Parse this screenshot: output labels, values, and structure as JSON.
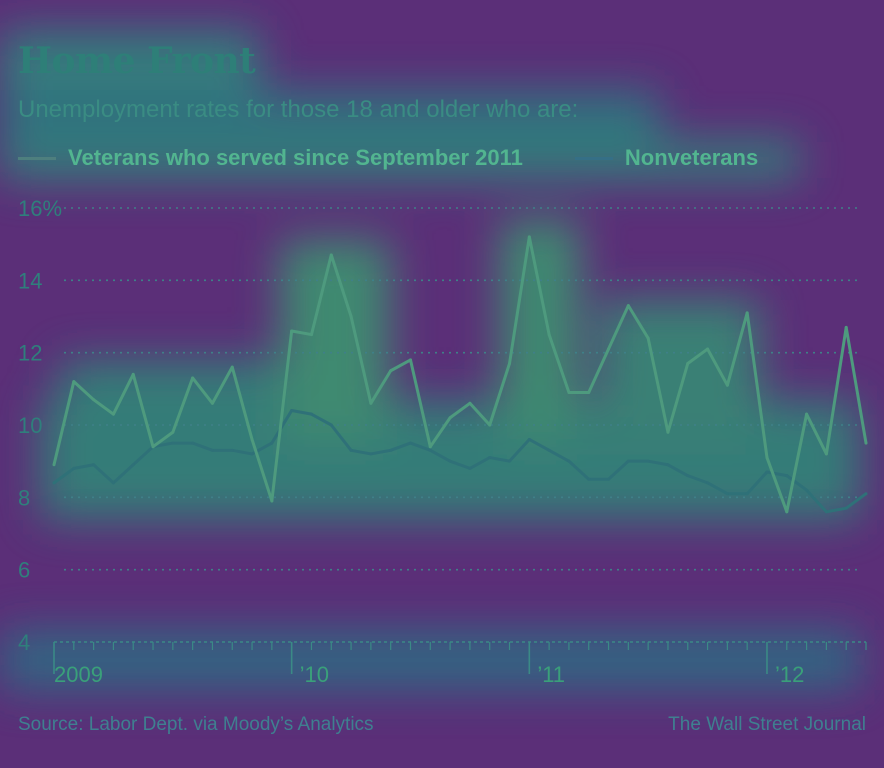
{
  "header": {
    "title": "Home Front",
    "subtitle": "Unemployment rates for those 18 and older who are:"
  },
  "footer": {
    "source": "Source: Labor Dept. via Moody’s Analytics",
    "credit": "The Wall Street Journal"
  },
  "colors": {
    "background": "#5b2f78",
    "veterans": "#4e9a7e",
    "nonveterans": "#2f7178",
    "grid": "#3d7f86"
  },
  "chart_data": {
    "type": "line",
    "title": "Home Front",
    "subtitle": "Unemployment rates for those 18 and older who are:",
    "xlabel": "",
    "ylabel": "",
    "x_tick_labels": [
      "2009",
      "’10",
      "’11",
      "’12"
    ],
    "y_ticks": [
      4,
      6,
      8,
      10,
      12,
      14,
      16
    ],
    "y_tick_labels": [
      "4",
      "6",
      "8",
      "10",
      "12",
      "14",
      "16%"
    ],
    "ylim": [
      4,
      16
    ],
    "grid": true,
    "legend_position": "top",
    "x_start": "2009-01",
    "x_end": "2012-08",
    "series": [
      {
        "name": "Veterans who served since September 2011",
        "color": "#4e9a7e",
        "values": [
          8.9,
          11.2,
          10.7,
          10.3,
          11.4,
          9.4,
          9.8,
          11.3,
          10.6,
          11.6,
          9.6,
          7.9,
          12.6,
          12.5,
          14.7,
          13.0,
          10.6,
          11.5,
          11.8,
          9.4,
          10.2,
          10.6,
          10.0,
          11.7,
          15.2,
          12.5,
          10.9,
          10.9,
          12.1,
          13.3,
          12.4,
          9.8,
          11.7,
          12.1,
          11.1,
          13.1,
          9.1,
          7.6,
          10.3,
          9.2,
          12.7,
          9.5
        ]
      },
      {
        "name": "Nonveterans",
        "color": "#2f7178",
        "values": [
          8.4,
          8.8,
          8.9,
          8.4,
          8.9,
          9.4,
          9.5,
          9.5,
          9.3,
          9.3,
          9.2,
          9.5,
          10.4,
          10.3,
          10.0,
          9.3,
          9.2,
          9.3,
          9.5,
          9.3,
          9.0,
          8.8,
          9.1,
          9.0,
          9.6,
          9.3,
          9.0,
          8.5,
          8.5,
          9.0,
          9.0,
          8.9,
          8.6,
          8.4,
          8.1,
          8.1,
          8.7,
          8.6,
          8.2,
          7.6,
          7.7,
          8.1
        ]
      }
    ]
  }
}
